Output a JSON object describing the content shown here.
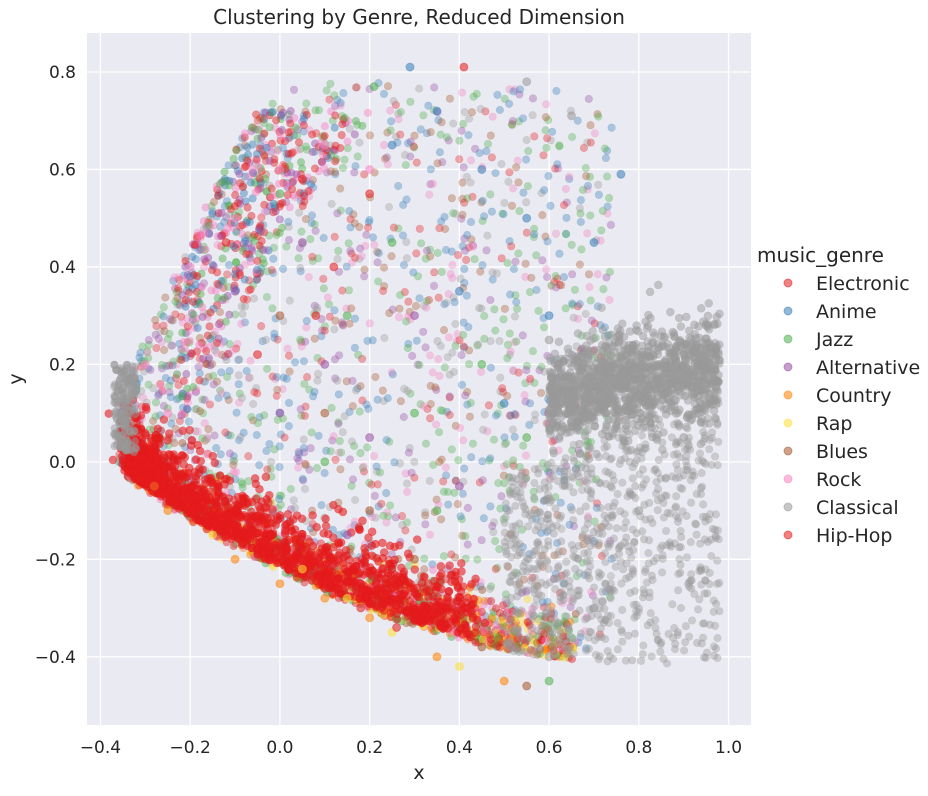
{
  "chart_data": {
    "type": "scatter",
    "title": "Clustering by Genre, Reduced Dimension",
    "xlabel": "x",
    "ylabel": "y",
    "xlim": [
      -0.43,
      1.05
    ],
    "ylim": [
      -0.54,
      0.88
    ],
    "x_ticks": [
      -0.4,
      -0.2,
      0.0,
      0.2,
      0.4,
      0.6,
      0.8,
      1.0
    ],
    "x_tick_labels": [
      "−0.4",
      "−0.2",
      "0.0",
      "0.2",
      "0.4",
      "0.6",
      "0.8",
      "1.0"
    ],
    "y_ticks": [
      -0.4,
      -0.2,
      0.0,
      0.2,
      0.4,
      0.6,
      0.8
    ],
    "y_tick_labels": [
      "−0.4",
      "−0.2",
      "0.0",
      "0.2",
      "0.4",
      "0.6",
      "0.8"
    ],
    "grid": true,
    "legend_title": "music_genre",
    "legend_position": "right",
    "series": [
      {
        "name": "Electronic",
        "color": "#e41a1c",
        "points": [
          [
            -0.3,
            -0.02
          ],
          [
            -0.12,
            0.45
          ],
          [
            0.05,
            0.58
          ],
          [
            0.12,
            0.4
          ],
          [
            0.3,
            -0.31
          ],
          [
            0.2,
            0.55
          ],
          [
            0.41,
            0.81
          ],
          [
            -0.05,
            0.22
          ],
          [
            0.18,
            -0.25
          ],
          [
            0.08,
            0.3
          ]
        ]
      },
      {
        "name": "Anime",
        "color": "#377eb8",
        "points": [
          [
            0.29,
            0.81
          ],
          [
            0.35,
            0.72
          ],
          [
            0.45,
            0.6
          ],
          [
            0.55,
            0.5
          ],
          [
            0.7,
            0.45
          ],
          [
            0.76,
            0.59
          ],
          [
            0.4,
            0.35
          ],
          [
            0.6,
            0.3
          ],
          [
            0.25,
            0.65
          ],
          [
            0.5,
            0.12
          ]
        ]
      },
      {
        "name": "Jazz",
        "color": "#4daf4a",
        "points": [
          [
            0.21,
            0.77
          ],
          [
            0.0,
            0.55
          ],
          [
            0.15,
            0.3
          ],
          [
            0.3,
            0.1
          ],
          [
            0.45,
            0.2
          ],
          [
            0.55,
            0.05
          ],
          [
            0.6,
            -0.45
          ],
          [
            0.1,
            0.0
          ],
          [
            0.35,
            -0.1
          ],
          [
            0.25,
            0.45
          ]
        ]
      },
      {
        "name": "Alternative",
        "color": "#984ea3",
        "points": [
          [
            -0.1,
            0.35
          ],
          [
            0.05,
            0.45
          ],
          [
            0.1,
            0.2
          ],
          [
            0.2,
            0.05
          ],
          [
            0.3,
            0.3
          ],
          [
            0.4,
            -0.05
          ],
          [
            0.15,
            -0.15
          ],
          [
            0.0,
            0.1
          ]
        ]
      },
      {
        "name": "Country",
        "color": "#ff7f00",
        "points": [
          [
            -0.25,
            -0.1
          ],
          [
            -0.1,
            -0.2
          ],
          [
            0.0,
            -0.25
          ],
          [
            0.1,
            -0.28
          ],
          [
            0.2,
            -0.32
          ],
          [
            0.35,
            -0.4
          ],
          [
            0.5,
            -0.45
          ]
        ]
      },
      {
        "name": "Rap",
        "color": "#ffdf33",
        "points": [
          [
            -0.28,
            -0.05
          ],
          [
            -0.15,
            -0.15
          ],
          [
            0.05,
            -0.22
          ],
          [
            0.15,
            -0.28
          ],
          [
            0.25,
            -0.35
          ],
          [
            0.4,
            -0.42
          ]
        ]
      },
      {
        "name": "Blues",
        "color": "#a65628",
        "points": [
          [
            0.0,
            0.3
          ],
          [
            0.1,
            0.1
          ],
          [
            0.2,
            -0.1
          ],
          [
            0.3,
            -0.2
          ],
          [
            0.45,
            -0.38
          ],
          [
            0.55,
            -0.46
          ]
        ]
      },
      {
        "name": "Rock",
        "color": "#f781bf",
        "points": [
          [
            -0.3,
            0.2
          ],
          [
            -0.2,
            0.4
          ],
          [
            -0.1,
            0.5
          ],
          [
            0.0,
            0.6
          ],
          [
            0.1,
            0.65
          ],
          [
            0.2,
            0.6
          ],
          [
            -0.25,
            0.1
          ]
        ]
      },
      {
        "name": "Classical",
        "color": "#999999",
        "points": [
          [
            0.6,
            0.25
          ],
          [
            0.75,
            0.2
          ],
          [
            0.9,
            0.22
          ],
          [
            0.95,
            0.28
          ],
          [
            0.85,
            0.15
          ],
          [
            0.8,
            -0.1
          ],
          [
            0.7,
            -0.3
          ],
          [
            0.6,
            -0.4
          ],
          [
            0.9,
            0.05
          ],
          [
            0.55,
            0.78
          ],
          [
            0.65,
            0.71
          ],
          [
            -0.35,
            0.1
          ]
        ]
      },
      {
        "name": "Hip-Hop",
        "color": "#e41a1c",
        "points": [
          [
            -0.32,
            0.0
          ],
          [
            -0.28,
            -0.05
          ],
          [
            -0.22,
            -0.08
          ],
          [
            -0.18,
            -0.12
          ],
          [
            -0.12,
            -0.15
          ],
          [
            -0.05,
            -0.18
          ],
          [
            0.02,
            -0.22
          ],
          [
            0.1,
            -0.26
          ],
          [
            0.18,
            -0.3
          ],
          [
            0.26,
            -0.34
          ]
        ]
      }
    ]
  }
}
